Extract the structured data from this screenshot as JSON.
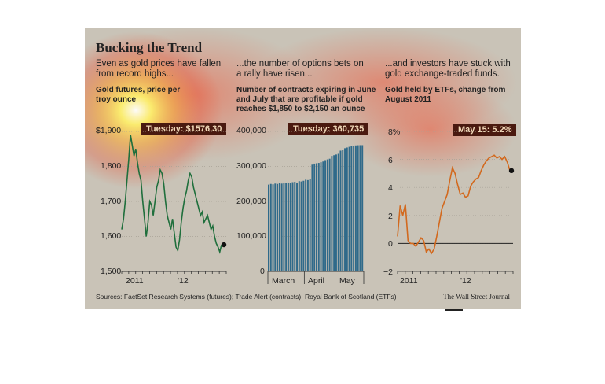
{
  "header": {
    "title": "Bucking the Trend",
    "source": "Sources: FactSet Research Systems (futures); Trade Alert (contracts); Royal Bank of Scotland (ETFs)",
    "credit": "The Wall Street Journal"
  },
  "colors": {
    "gold_line": "#1f6f3c",
    "bars": "#2f6a8a",
    "etf_line": "#d2691e",
    "callout_bg": "#4a1a10",
    "panel_bg": "#c9c3b7"
  },
  "chart_data": [
    {
      "type": "line",
      "dek": "Even as gold prices have fallen from record highs...",
      "subtitle": "Gold futures, price per troy ounce",
      "callout": "Tuesday: $1576.30",
      "y_ticks": [
        "$1,900",
        "1,800",
        "1,700",
        "1,600",
        "1,500"
      ],
      "x_ticks": [
        "2011",
        "'12"
      ],
      "ylim": [
        1500,
        1900
      ],
      "series": [
        {
          "values": [
            1620,
            1650,
            1700,
            1760,
            1820,
            1890,
            1860,
            1830,
            1850,
            1810,
            1780,
            1760,
            1700,
            1650,
            1600,
            1640,
            1700,
            1690,
            1660,
            1700,
            1740,
            1760,
            1790,
            1780,
            1750,
            1700,
            1660,
            1640,
            1620,
            1650,
            1610,
            1570,
            1560,
            1590,
            1640,
            1680,
            1710,
            1730,
            1760,
            1780,
            1770,
            1740,
            1720,
            1700,
            1680,
            1660,
            1670,
            1640,
            1650,
            1660,
            1640,
            1620,
            1630,
            1600,
            1580,
            1570,
            1556,
            1576.3
          ]
        }
      ]
    },
    {
      "type": "bar",
      "dek": "...the number of options bets on a rally have risen...",
      "subtitle": "Number of contracts expiring in June and July that are profitable if gold reaches $1,850 to $2,150 an ounce",
      "callout": "Tuesday: 360,735",
      "y_ticks": [
        "400,000",
        "300,000",
        "200,000",
        "100,000",
        "0"
      ],
      "x_ticks": [
        "March",
        "April",
        "May"
      ],
      "ylim": [
        0,
        400000
      ],
      "values": [
        248000,
        250000,
        249000,
        251000,
        250000,
        252000,
        251000,
        253000,
        252000,
        254000,
        253000,
        255000,
        256000,
        254000,
        258000,
        257000,
        259000,
        262000,
        261000,
        263000,
        305000,
        308000,
        309000,
        310000,
        312000,
        314000,
        318000,
        320000,
        322000,
        330000,
        332000,
        334000,
        336000,
        345000,
        348000,
        352000,
        354000,
        356000,
        358000,
        359000,
        360000,
        360500,
        360735,
        360735
      ]
    },
    {
      "type": "line",
      "dek": "...and investors have stuck with gold exchange-traded funds.",
      "subtitle": "Gold held by ETFs, change from August 2011",
      "callout": "May 15: 5.2%",
      "y_ticks": [
        "8%",
        "6",
        "4",
        "2",
        "0",
        "−2"
      ],
      "x_ticks": [
        "2011",
        "'12"
      ],
      "ylim": [
        -2,
        8
      ],
      "series": [
        {
          "values": [
            0.5,
            2.7,
            2.0,
            2.8,
            0.2,
            0.0,
            0.0,
            -0.2,
            0.1,
            0.4,
            0.2,
            -0.6,
            -0.4,
            -0.7,
            -0.4,
            0.5,
            1.5,
            2.5,
            3.0,
            3.5,
            4.5,
            5.4,
            5.0,
            4.2,
            3.5,
            3.6,
            3.3,
            3.4,
            4.1,
            4.4,
            4.6,
            4.7,
            5.2,
            5.6,
            5.9,
            6.1,
            6.2,
            6.3,
            6.1,
            6.2,
            6.0,
            6.2,
            5.8,
            5.2
          ]
        }
      ]
    }
  ]
}
